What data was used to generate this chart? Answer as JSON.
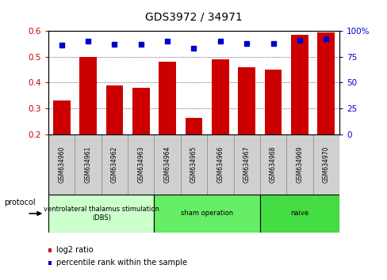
{
  "title": "GDS3972 / 34971",
  "samples": [
    "GSM634960",
    "GSM634961",
    "GSM634962",
    "GSM634963",
    "GSM634964",
    "GSM634965",
    "GSM634966",
    "GSM634967",
    "GSM634968",
    "GSM634969",
    "GSM634970"
  ],
  "log2_ratio": [
    0.33,
    0.5,
    0.39,
    0.38,
    0.48,
    0.265,
    0.49,
    0.46,
    0.45,
    0.585,
    0.595
  ],
  "percentile_rank": [
    86,
    90,
    87,
    87,
    90,
    83,
    90,
    88,
    88,
    91,
    92
  ],
  "bar_color": "#cc0000",
  "dot_color": "#0000cc",
  "ylim_left": [
    0.2,
    0.6
  ],
  "ylim_right": [
    0,
    100
  ],
  "yticks_left": [
    0.2,
    0.3,
    0.4,
    0.5,
    0.6
  ],
  "yticks_right": [
    0,
    25,
    50,
    75,
    100
  ],
  "groups": [
    {
      "label": "ventrolateral thalamus stimulation\n(DBS)",
      "start": 0,
      "end": 3,
      "color": "#ccffcc"
    },
    {
      "label": "sham operation",
      "start": 4,
      "end": 7,
      "color": "#66ee66"
    },
    {
      "label": "naive",
      "start": 8,
      "end": 10,
      "color": "#44dd44"
    }
  ],
  "legend_bar_label": "log2 ratio",
  "legend_dot_label": "percentile rank within the sample",
  "protocol_label": "protocol",
  "background_color": "#ffffff",
  "plot_bg_color": "#ffffff",
  "tick_label_color_left": "#cc0000",
  "tick_label_color_right": "#0000cc",
  "label_box_color": "#d0d0d0",
  "title_fontsize": 10,
  "tick_fontsize": 7.5,
  "sample_fontsize": 5.5
}
